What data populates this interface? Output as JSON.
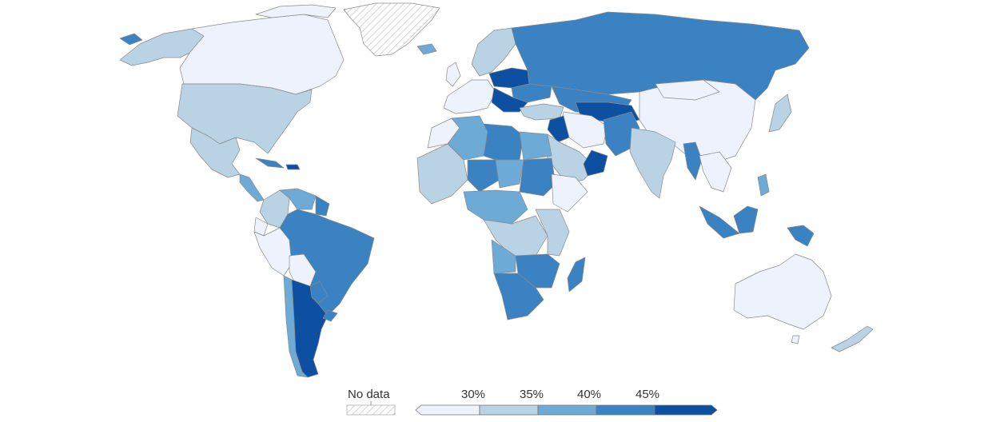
{
  "map": {
    "legend": {
      "no_data_label": "No data",
      "ticks": [
        "30%",
        "35%",
        "40%",
        "45%"
      ],
      "bins": [
        {
          "color": "#eef2fc"
        },
        {
          "color": "#b9d2e4"
        },
        {
          "color": "#6daad6"
        },
        {
          "color": "#3a82c1"
        },
        {
          "color": "#0d4fa0"
        }
      ],
      "no_data_pattern": "diagonal-hatch"
    },
    "colors": {
      "ocean": "#ffffff",
      "border": "#8a8a8a",
      "no_data_fill": "#ffffff",
      "hatch": "#c8c8c8"
    }
  }
}
